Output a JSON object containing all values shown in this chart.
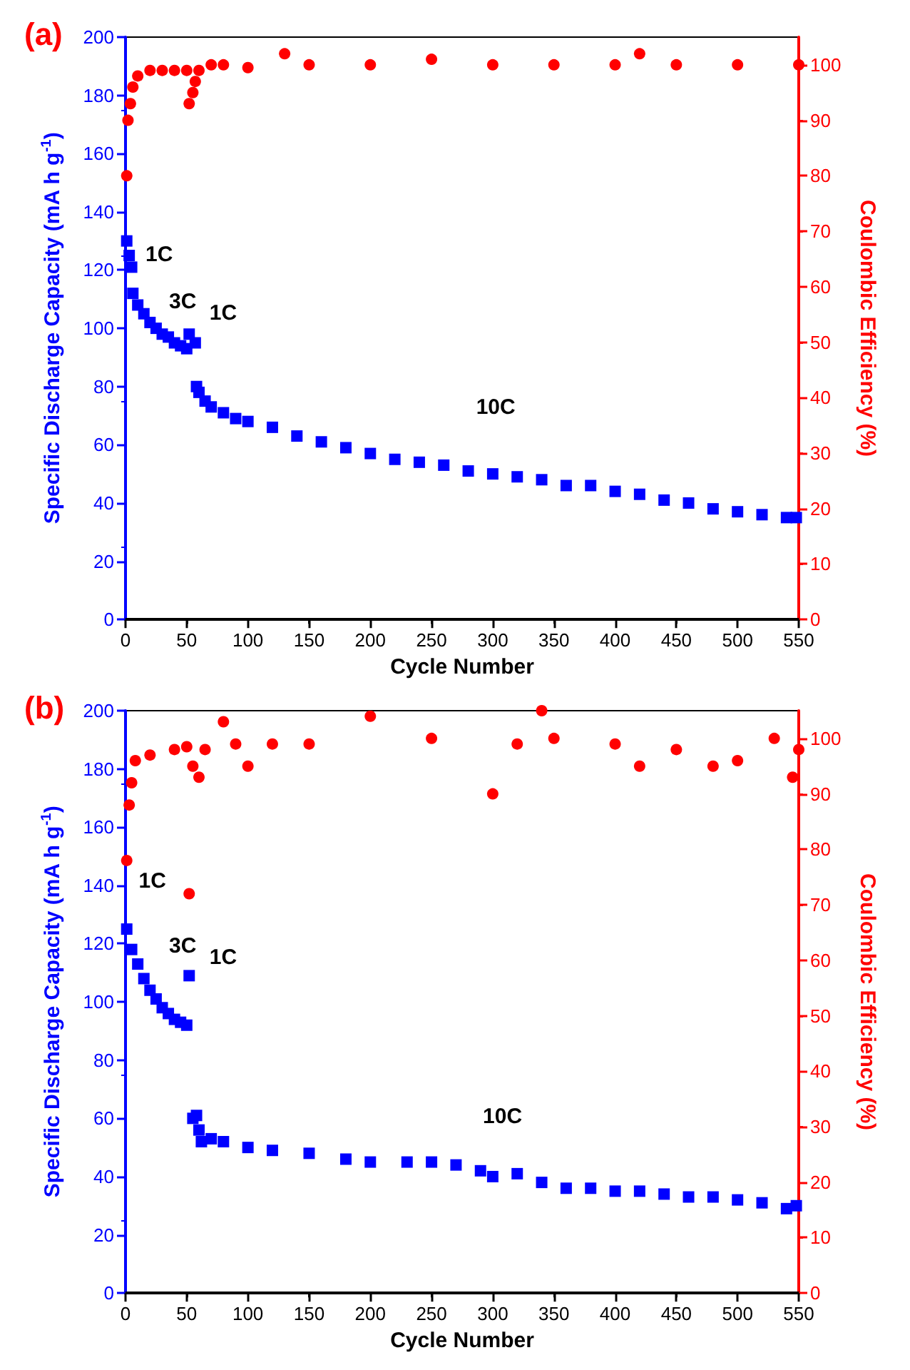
{
  "chart_data": [
    {
      "type": "scatter",
      "title": "(a)",
      "xlabel": "Cycle Number",
      "ylabel": "Specific Discharge Capacity (mA h g$^{-1}$)",
      "y2label": "Coulombic Efficiency (%)",
      "xlim": [
        0,
        550
      ],
      "xticks": [
        0,
        50,
        100,
        150,
        200,
        250,
        300,
        350,
        400,
        450,
        500,
        550
      ],
      "ylim": [
        0,
        200
      ],
      "yticks": [
        0,
        20,
        40,
        60,
        80,
        100,
        120,
        140,
        160,
        180,
        200
      ],
      "y2lim": [
        0,
        105
      ],
      "y2ticks": [
        0,
        10,
        20,
        30,
        40,
        50,
        60,
        70,
        80,
        90,
        100
      ],
      "annotations": [
        "1C",
        "3C",
        "1C",
        "10C"
      ],
      "series": [
        {
          "color": "#0000ff",
          "marker": "square",
          "x": [
            1,
            3,
            5,
            6,
            10,
            15,
            20,
            25,
            30,
            35,
            40,
            45,
            50,
            52,
            57,
            58,
            60,
            65,
            70,
            80,
            90,
            100,
            120,
            140,
            160,
            180,
            200,
            220,
            240,
            260,
            280,
            300,
            320,
            340,
            360,
            380,
            400,
            420,
            440,
            460,
            480,
            500,
            520,
            540,
            548
          ],
          "values": [
            130,
            125,
            121,
            112,
            108,
            105,
            102,
            100,
            98,
            97,
            95,
            94,
            93,
            98,
            95,
            80,
            78,
            75,
            73,
            71,
            69,
            68,
            66,
            63,
            61,
            59,
            57,
            55,
            54,
            53,
            51,
            50,
            49,
            48,
            46,
            46,
            44,
            43,
            41,
            40,
            38,
            37,
            36,
            35,
            35
          ]
        },
        {
          "color": "#ff0000",
          "marker": "circle",
          "axis": "y2",
          "x": [
            1,
            2,
            4,
            6,
            10,
            20,
            30,
            40,
            50,
            52,
            55,
            57,
            60,
            70,
            80,
            100,
            130,
            150,
            200,
            250,
            300,
            350,
            400,
            420,
            450,
            500,
            550
          ],
          "values": [
            80,
            90,
            93,
            96,
            98,
            99,
            99,
            99,
            99,
            93,
            95,
            97,
            99,
            100,
            100,
            99.5,
            102,
            100,
            100,
            101,
            100,
            100,
            100,
            102,
            100,
            100,
            100
          ]
        }
      ]
    },
    {
      "type": "scatter",
      "title": "(b)",
      "xlabel": "Cycle Number",
      "ylabel": "Specific Discharge Capacity (mA h g$^{-1}$)",
      "y2label": "Coulombic Efficiency (%)",
      "xlim": [
        0,
        550
      ],
      "xticks": [
        0,
        50,
        100,
        150,
        200,
        250,
        300,
        350,
        400,
        450,
        500,
        550
      ],
      "ylim": [
        0,
        200
      ],
      "yticks": [
        0,
        20,
        40,
        60,
        80,
        100,
        120,
        140,
        160,
        180,
        200
      ],
      "y2lim": [
        0,
        105
      ],
      "y2ticks": [
        0,
        10,
        20,
        30,
        40,
        50,
        60,
        70,
        80,
        90,
        100
      ],
      "annotations": [
        "1C",
        "3C",
        "1C",
        "10C"
      ],
      "series": [
        {
          "color": "#0000ff",
          "marker": "square",
          "x": [
            1,
            5,
            10,
            15,
            20,
            25,
            30,
            35,
            40,
            45,
            50,
            52,
            55,
            58,
            60,
            62,
            70,
            80,
            100,
            120,
            150,
            180,
            200,
            230,
            250,
            270,
            290,
            300,
            320,
            340,
            360,
            380,
            400,
            420,
            440,
            460,
            480,
            500,
            520,
            540,
            548
          ],
          "values": [
            125,
            118,
            113,
            108,
            104,
            101,
            98,
            96,
            94,
            93,
            92,
            109,
            60,
            61,
            56,
            52,
            53,
            52,
            50,
            49,
            48,
            46,
            45,
            45,
            45,
            44,
            42,
            40,
            41,
            38,
            36,
            36,
            35,
            35,
            34,
            33,
            33,
            32,
            31,
            29,
            30
          ]
        },
        {
          "color": "#ff0000",
          "marker": "circle",
          "axis": "y2",
          "x": [
            1,
            3,
            5,
            8,
            20,
            40,
            50,
            52,
            55,
            60,
            65,
            80,
            90,
            100,
            120,
            150,
            200,
            250,
            300,
            320,
            340,
            350,
            400,
            420,
            450,
            480,
            500,
            530,
            545,
            550
          ],
          "values": [
            78,
            88,
            92,
            96,
            97,
            98,
            98.5,
            72,
            95,
            93,
            98,
            103,
            99,
            95,
            99,
            99,
            104,
            100,
            90,
            99,
            105,
            100,
            99,
            95,
            98,
            95,
            96,
            100,
            93,
            98
          ]
        }
      ]
    }
  ]
}
